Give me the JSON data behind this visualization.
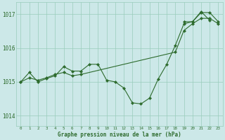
{
  "xlabel": "Graphe pression niveau de la mer (hPa)",
  "bg_color": "#cce8e8",
  "grid_color": "#99ccbb",
  "line_color": "#2d6b2d",
  "ylim": [
    1013.7,
    1017.35
  ],
  "yticks": [
    1014,
    1015,
    1016,
    1017
  ],
  "xticks": [
    0,
    1,
    2,
    3,
    4,
    5,
    6,
    7,
    8,
    9,
    10,
    11,
    12,
    13,
    14,
    15,
    16,
    17,
    18,
    19,
    20,
    21,
    22,
    23
  ],
  "series1_x": [
    0,
    1,
    2,
    3,
    4,
    5,
    6,
    7,
    8,
    9,
    10,
    11,
    12,
    13,
    14,
    15,
    16,
    17,
    18,
    19,
    20,
    21,
    22,
    23
  ],
  "series1_y": [
    1015.0,
    1015.28,
    1015.0,
    1015.1,
    1015.18,
    1015.45,
    1015.32,
    1015.32,
    1015.52,
    1015.52,
    1015.05,
    1015.0,
    1014.82,
    1014.38,
    1014.35,
    1014.52,
    1015.08,
    1015.52,
    1016.08,
    1016.72,
    1016.78,
    1017.05,
    1017.05,
    1016.78
  ],
  "series2_x": [
    0,
    1,
    2,
    3,
    4,
    5,
    6,
    7,
    18,
    19,
    20,
    21,
    22,
    23
  ],
  "series2_y": [
    1015.0,
    1015.12,
    1015.05,
    1015.12,
    1015.22,
    1015.28,
    1015.18,
    1015.22,
    1015.88,
    1016.52,
    1016.72,
    1016.88,
    1016.88,
    1016.72
  ],
  "series3_x": [
    19,
    20,
    21,
    22
  ],
  "series3_y": [
    1016.78,
    1016.78,
    1017.08,
    1016.82
  ]
}
